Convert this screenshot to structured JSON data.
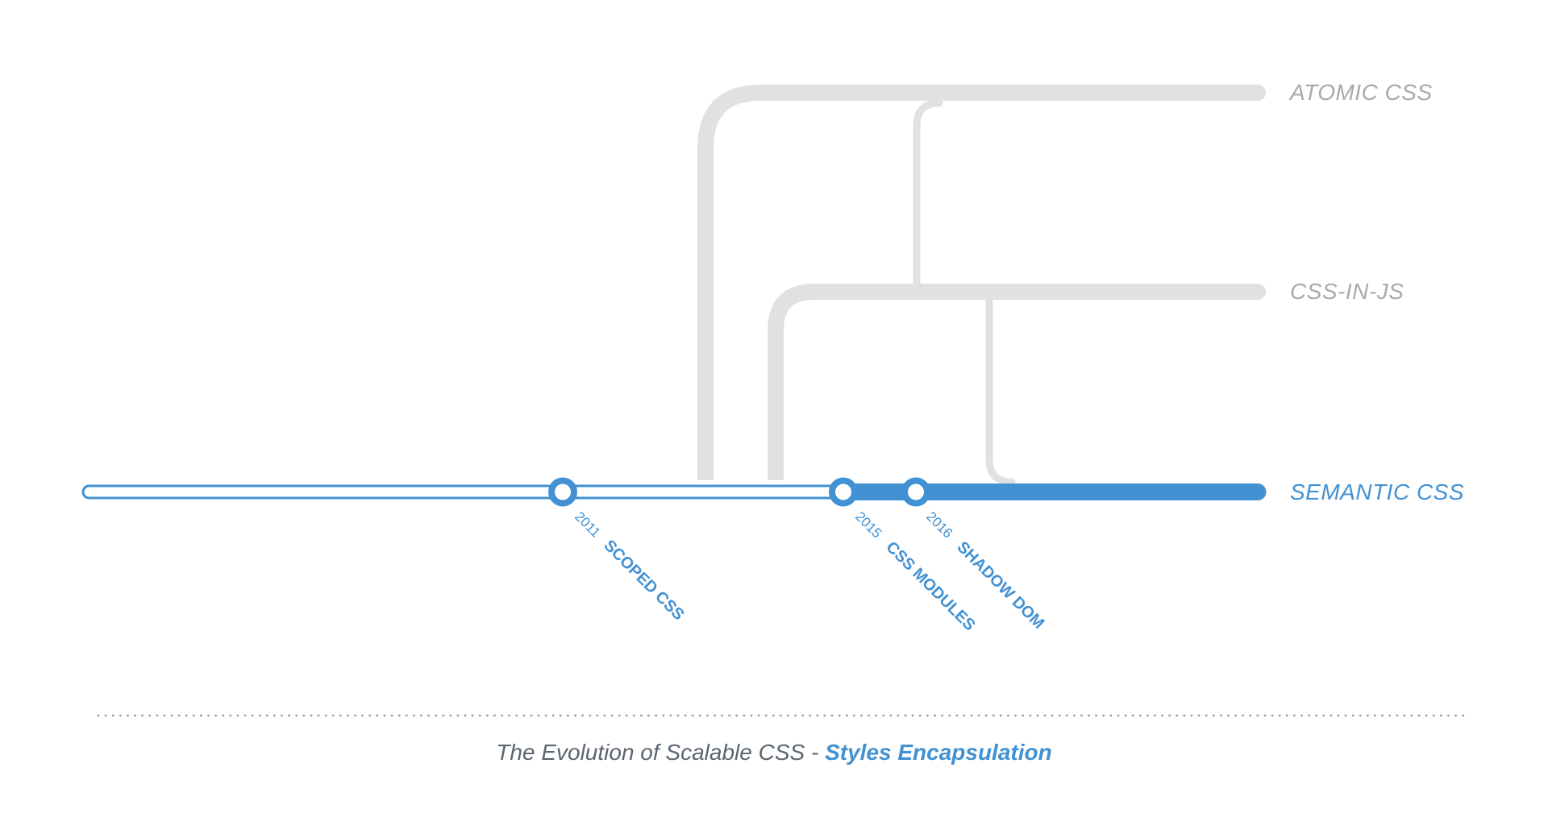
{
  "colors": {
    "accent": "#4191d3",
    "muted_track": "#e0e1e2",
    "muted_label": "#a8a9ab",
    "caption_text": "#5c6570"
  },
  "branches": {
    "atomic": "ATOMIC CSS",
    "css_in_js": "CSS-IN-JS",
    "semantic": "SEMANTIC CSS"
  },
  "milestones": [
    {
      "year": "2011",
      "label": "SCOPED CSS"
    },
    {
      "year": "2015",
      "label": "CSS MODULES"
    },
    {
      "year": "2016",
      "label": "SHADOW DOM"
    }
  ],
  "caption": {
    "prefix": "The Evolution of Scalable CSS - ",
    "emphasis": "Styles Encapsulation"
  }
}
